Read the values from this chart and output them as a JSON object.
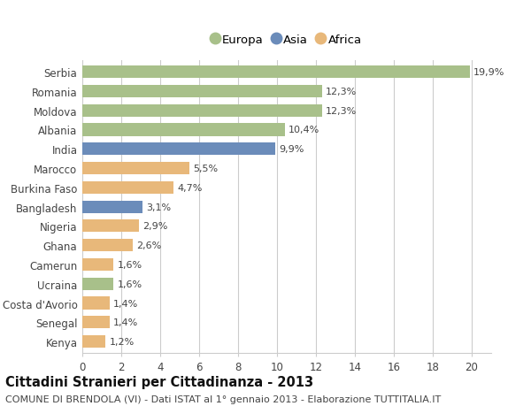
{
  "categories": [
    "Serbia",
    "Romania",
    "Moldova",
    "Albania",
    "India",
    "Marocco",
    "Burkina Faso",
    "Bangladesh",
    "Nigeria",
    "Ghana",
    "Camerun",
    "Ucraina",
    "Costa d'Avorio",
    "Senegal",
    "Kenya"
  ],
  "values": [
    19.9,
    12.3,
    12.3,
    10.4,
    9.9,
    5.5,
    4.7,
    3.1,
    2.9,
    2.6,
    1.6,
    1.6,
    1.4,
    1.4,
    1.2
  ],
  "labels": [
    "19,9%",
    "12,3%",
    "12,3%",
    "10,4%",
    "9,9%",
    "5,5%",
    "4,7%",
    "3,1%",
    "2,9%",
    "2,6%",
    "1,6%",
    "1,6%",
    "1,4%",
    "1,4%",
    "1,2%"
  ],
  "continents": [
    "Europa",
    "Europa",
    "Europa",
    "Europa",
    "Asia",
    "Africa",
    "Africa",
    "Asia",
    "Africa",
    "Africa",
    "Africa",
    "Europa",
    "Africa",
    "Africa",
    "Africa"
  ],
  "colors": {
    "Europa": "#a8c08a",
    "Asia": "#6b8cba",
    "Africa": "#e8b87a"
  },
  "xlim": [
    0,
    21
  ],
  "xticks": [
    0,
    2,
    4,
    6,
    8,
    10,
    12,
    14,
    16,
    18,
    20
  ],
  "title": "Cittadini Stranieri per Cittadinanza - 2013",
  "subtitle": "COMUNE DI BRENDOLA (VI) - Dati ISTAT al 1° gennaio 2013 - Elaborazione TUTTITALIA.IT",
  "bg_color": "#ffffff",
  "grid_color": "#cccccc",
  "bar_height": 0.65,
  "title_fontsize": 10.5,
  "subtitle_fontsize": 8,
  "tick_fontsize": 8.5,
  "label_fontsize": 8
}
